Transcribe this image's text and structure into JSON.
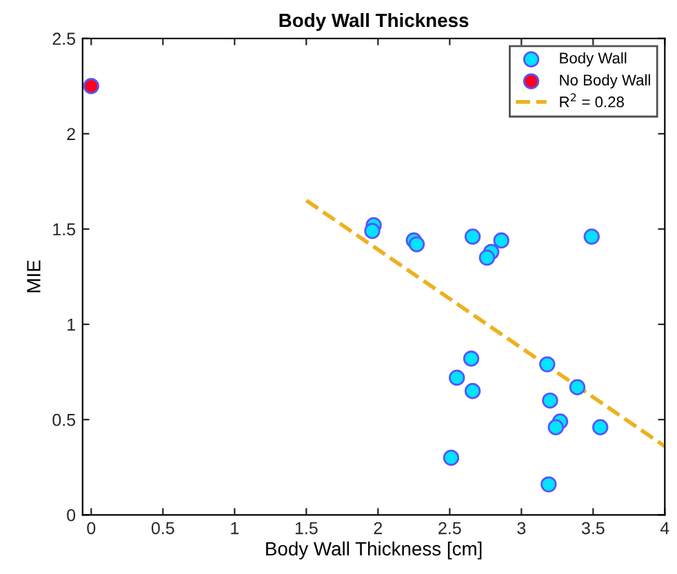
{
  "chart_data": {
    "type": "scatter",
    "title": "Body Wall Thickness",
    "xlabel": "Body Wall Thickness [cm]",
    "ylabel": "MIE",
    "xlim": [
      -0.06,
      4
    ],
    "ylim": [
      0,
      2.5
    ],
    "xticks": [
      0,
      0.5,
      1,
      1.5,
      2,
      2.5,
      3,
      3.5,
      4
    ],
    "yticks": [
      0,
      0.5,
      1,
      1.5,
      2,
      2.5
    ],
    "grid": false,
    "legend": "top right",
    "marker": "circle",
    "series": [
      {
        "name": "Body Wall",
        "color": "#00e5ff",
        "x": [
          1.97,
          1.96,
          2.25,
          2.27,
          2.66,
          2.79,
          2.76,
          2.86,
          3.49,
          2.65,
          2.55,
          2.66,
          2.51,
          3.18,
          3.39,
          3.2,
          3.27,
          3.24,
          3.55,
          3.19
        ],
        "values": [
          1.52,
          1.49,
          1.44,
          1.42,
          1.46,
          1.38,
          1.35,
          1.44,
          1.46,
          0.82,
          0.72,
          0.65,
          0.3,
          0.79,
          0.67,
          0.6,
          0.49,
          0.46,
          0.46,
          0.16
        ]
      },
      {
        "name": "No Body Wall",
        "color": "#ff0022",
        "x": [
          0
        ],
        "values": [
          2.25
        ]
      },
      {
        "name": "R$^{2}$ = 0.28",
        "type": "line",
        "line_style": "dashed",
        "marker": "none",
        "color": "#edb120",
        "x": [
          1.5,
          4
        ],
        "values": [
          1.65,
          0.36
        ]
      }
    ]
  }
}
